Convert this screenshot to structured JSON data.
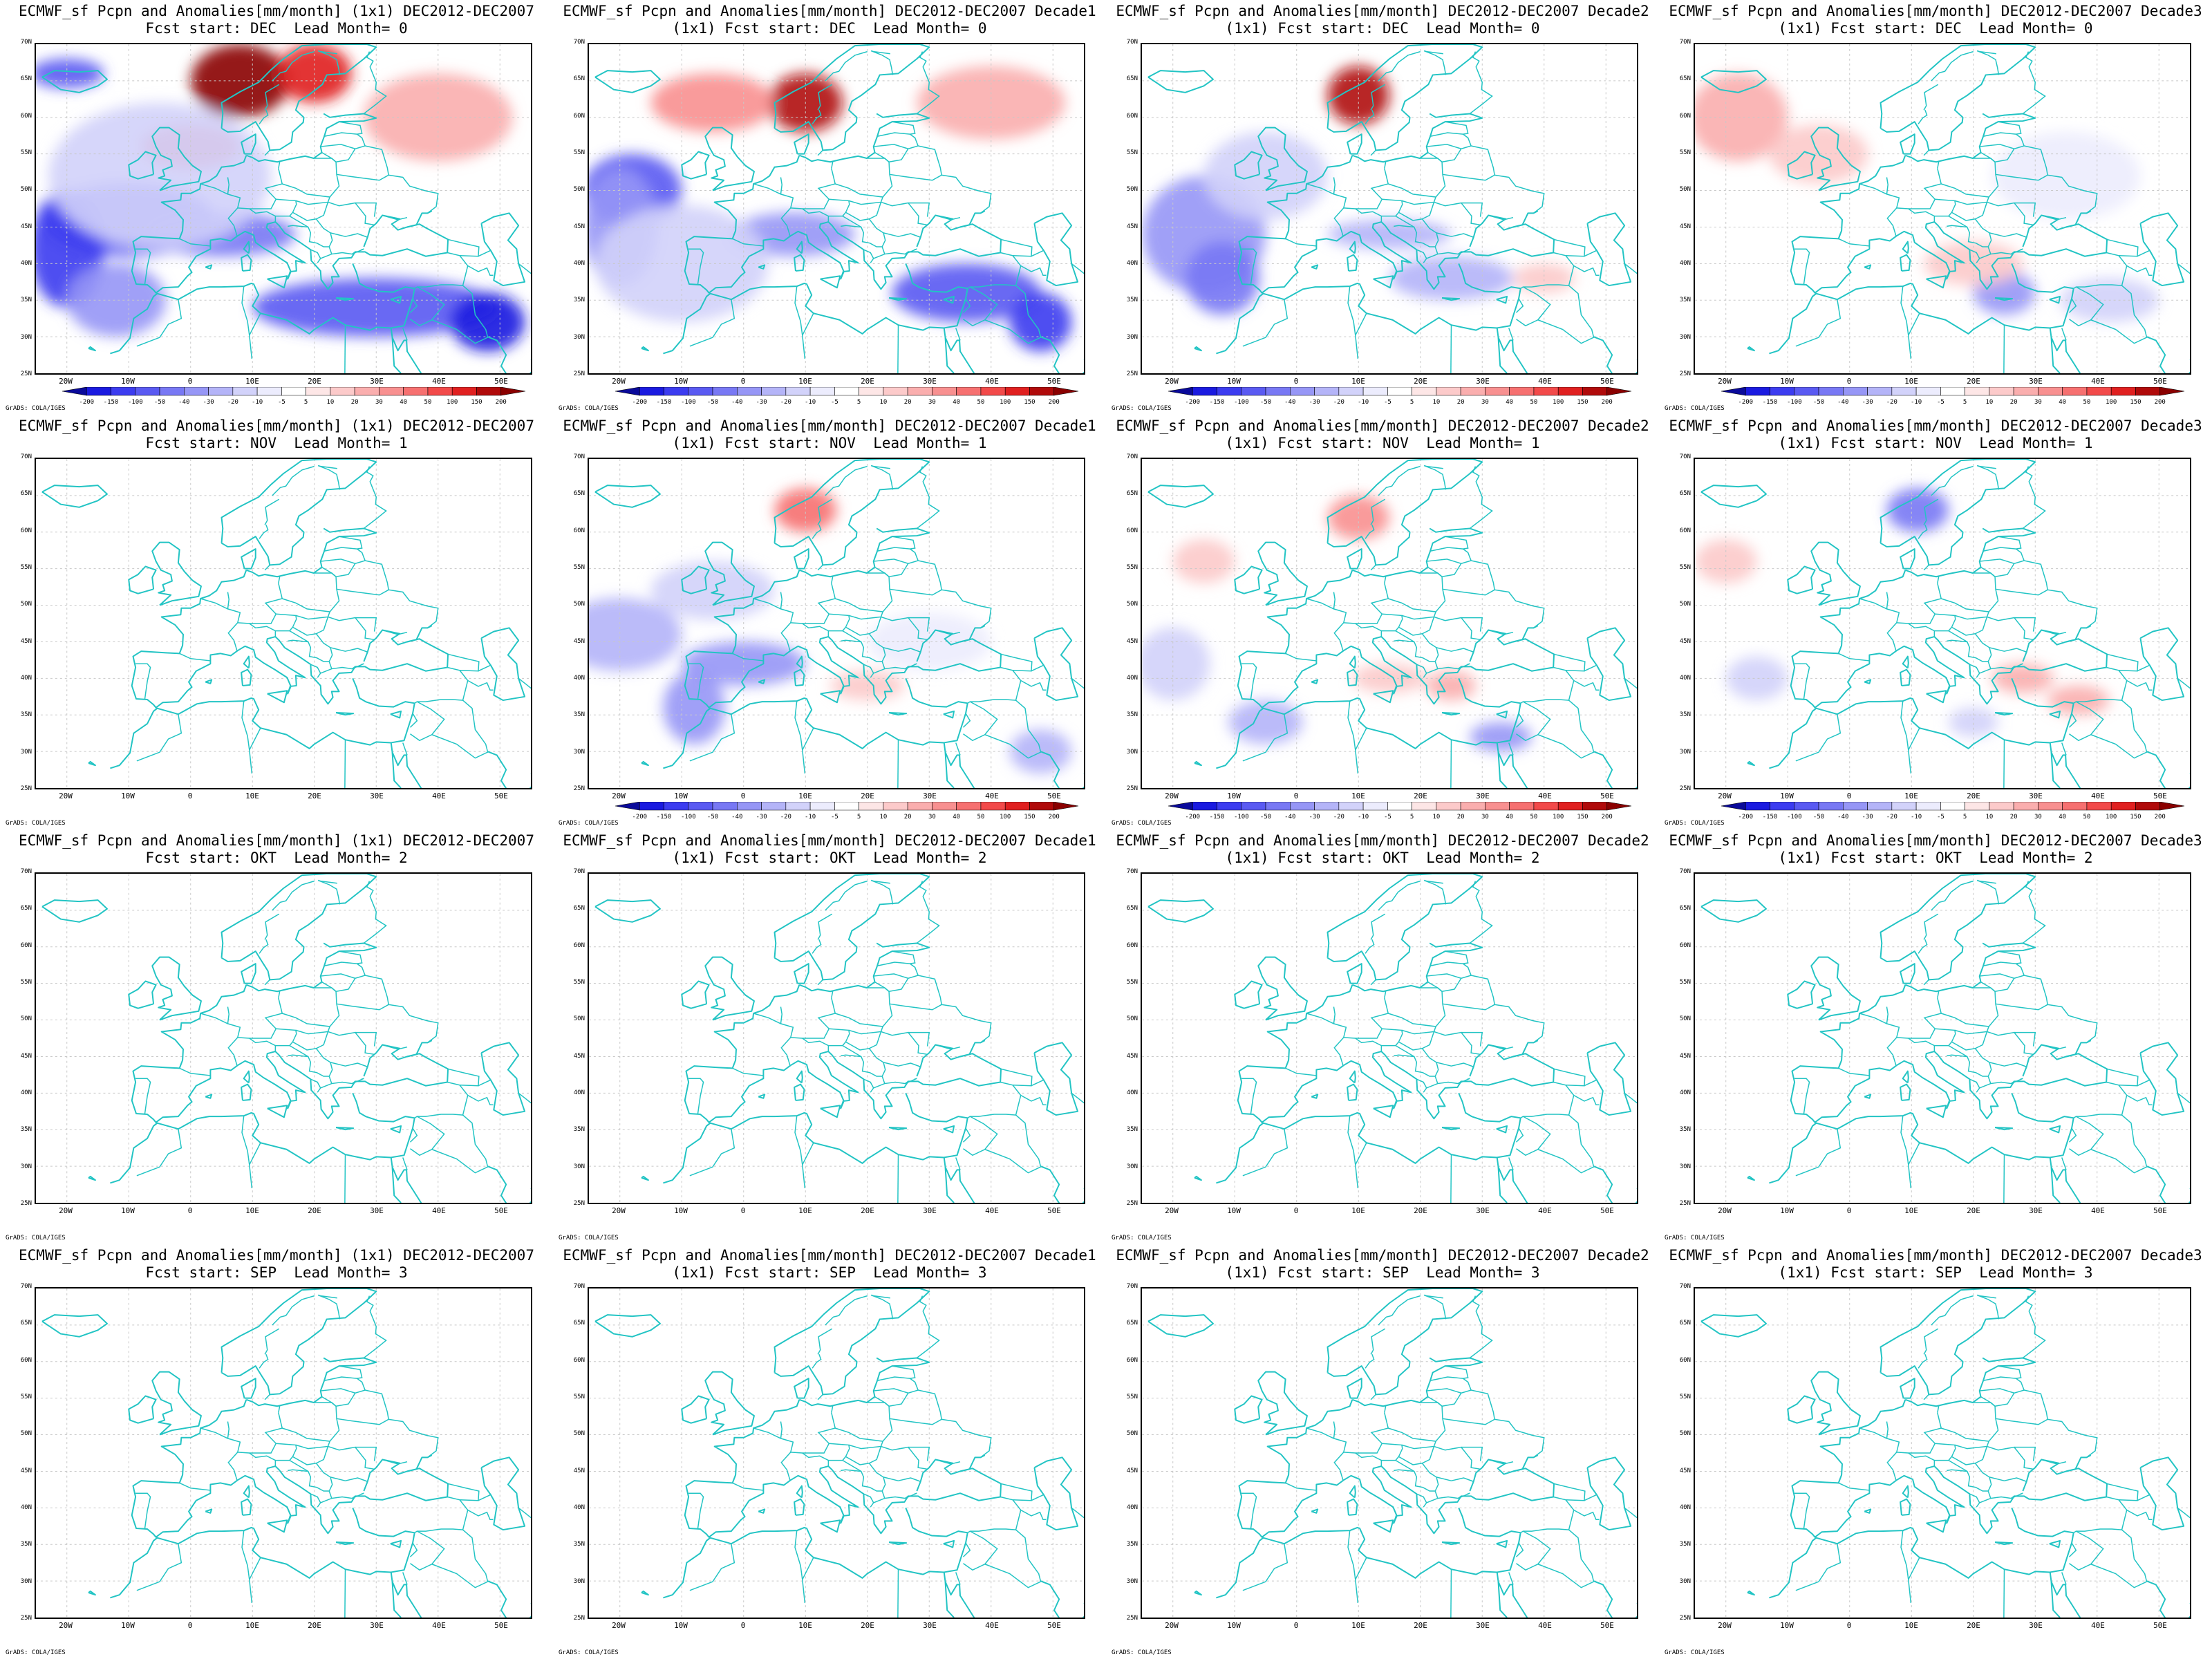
{
  "lat_labels": [
    "70N",
    "65N",
    "60N",
    "55N",
    "50N",
    "45N",
    "40N",
    "35N",
    "30N",
    "25N"
  ],
  "lon_labels": [
    "20W",
    "10W",
    "0",
    "10E",
    "20E",
    "30E",
    "40E",
    "50E"
  ],
  "credit": "GrADS: COLA/IGES",
  "colorbar": {
    "labels": [
      "-200",
      "-150",
      "-100",
      "-50",
      "-40",
      "-30",
      "-20",
      "-10",
      "-5",
      "5",
      "10",
      "20",
      "30",
      "40",
      "50",
      "100",
      "150",
      "200"
    ],
    "colors": [
      "#0a0a9a",
      "#1a1ae0",
      "#3c3cf0",
      "#5a5af2",
      "#7878f4",
      "#9696f6",
      "#b4b4f8",
      "#d2d2fa",
      "#ececfd",
      "#ffffff",
      "#fde6e6",
      "#fccaca",
      "#faaeae",
      "#f89090",
      "#f67070",
      "#f24a4a",
      "#e02020",
      "#b00a0a",
      "#8a0000"
    ]
  },
  "panels": [
    {
      "title1": "ECMWF_sf Pcpn and Anomalies[mm/month] (1x1) DEC2012-DEC2007",
      "title2": "Fcst start: DEC  Lead Month= 0",
      "has_colorbar": true,
      "intensity": 1.0
    },
    {
      "title1": "ECMWF_sf Pcpn and Anomalies[mm/month] DEC2012-DEC2007 Decade1",
      "title2": "(1x1) Fcst start: DEC  Lead Month= 0",
      "has_colorbar": true,
      "intensity": 0.8
    },
    {
      "title1": "ECMWF_sf Pcpn and Anomalies[mm/month] DEC2012-DEC2007 Decade2",
      "title2": "(1x1) Fcst start: DEC  Lead Month= 0",
      "has_colorbar": true,
      "intensity": 0.6
    },
    {
      "title1": "ECMWF_sf Pcpn and Anomalies[mm/month] DEC2012-DEC2007 Decade3",
      "title2": "(1x1) Fcst start: DEC  Lead Month= 0",
      "has_colorbar": true,
      "intensity": 0.35
    },
    {
      "title1": "ECMWF_sf Pcpn and Anomalies[mm/month] (1x1) DEC2012-DEC2007",
      "title2": "Fcst start: NOV  Lead Month= 1",
      "has_colorbar": false,
      "intensity": 0
    },
    {
      "title1": "ECMWF_sf Pcpn and Anomalies[mm/month] DEC2012-DEC2007 Decade1",
      "title2": "(1x1) Fcst start: NOV  Lead Month= 1",
      "has_colorbar": true,
      "intensity": 0.4
    },
    {
      "title1": "ECMWF_sf Pcpn and Anomalies[mm/month] DEC2012-DEC2007 Decade2",
      "title2": "(1x1) Fcst start: NOV  Lead Month= 1",
      "has_colorbar": true,
      "intensity": 0.3
    },
    {
      "title1": "ECMWF_sf Pcpn and Anomalies[mm/month] DEC2012-DEC2007 Decade3",
      "title2": "(1x1) Fcst start: NOV  Lead Month= 1",
      "has_colorbar": true,
      "intensity": 0.25
    },
    {
      "title1": "ECMWF_sf Pcpn and Anomalies[mm/month] (1x1) DEC2012-DEC2007",
      "title2": "Fcst start: OKT  Lead Month= 2",
      "has_colorbar": false,
      "intensity": 0
    },
    {
      "title1": "ECMWF_sf Pcpn and Anomalies[mm/month] DEC2012-DEC2007 Decade1",
      "title2": "(1x1) Fcst start: OKT  Lead Month= 2",
      "has_colorbar": false,
      "intensity": 0
    },
    {
      "title1": "ECMWF_sf Pcpn and Anomalies[mm/month] DEC2012-DEC2007 Decade2",
      "title2": "(1x1) Fcst start: OKT  Lead Month= 2",
      "has_colorbar": false,
      "intensity": 0
    },
    {
      "title1": "ECMWF_sf Pcpn and Anomalies[mm/month] DEC2012-DEC2007 Decade3",
      "title2": "(1x1) Fcst start: OKT  Lead Month= 2",
      "has_colorbar": false,
      "intensity": 0
    },
    {
      "title1": "ECMWF_sf Pcpn and Anomalies[mm/month] (1x1) DEC2012-DEC2007",
      "title2": "Fcst start: SEP  Lead Month= 3",
      "has_colorbar": false,
      "intensity": 0
    },
    {
      "title1": "ECMWF_sf Pcpn and Anomalies[mm/month] DEC2012-DEC2007 Decade1",
      "title2": "(1x1) Fcst start: SEP  Lead Month= 3",
      "has_colorbar": false,
      "intensity": 0
    },
    {
      "title1": "ECMWF_sf Pcpn and Anomalies[mm/month] DEC2012-DEC2007 Decade2",
      "title2": "(1x1) Fcst start: SEP  Lead Month= 3",
      "has_colorbar": false,
      "intensity": 0
    },
    {
      "title1": "ECMWF_sf Pcpn and Anomalies[mm/month] DEC2012-DEC2007 Decade3",
      "title2": "(1x1) Fcst start: SEP  Lead Month= 3",
      "has_colorbar": false,
      "intensity": 0
    }
  ],
  "coast_color": "#22c4c4"
}
